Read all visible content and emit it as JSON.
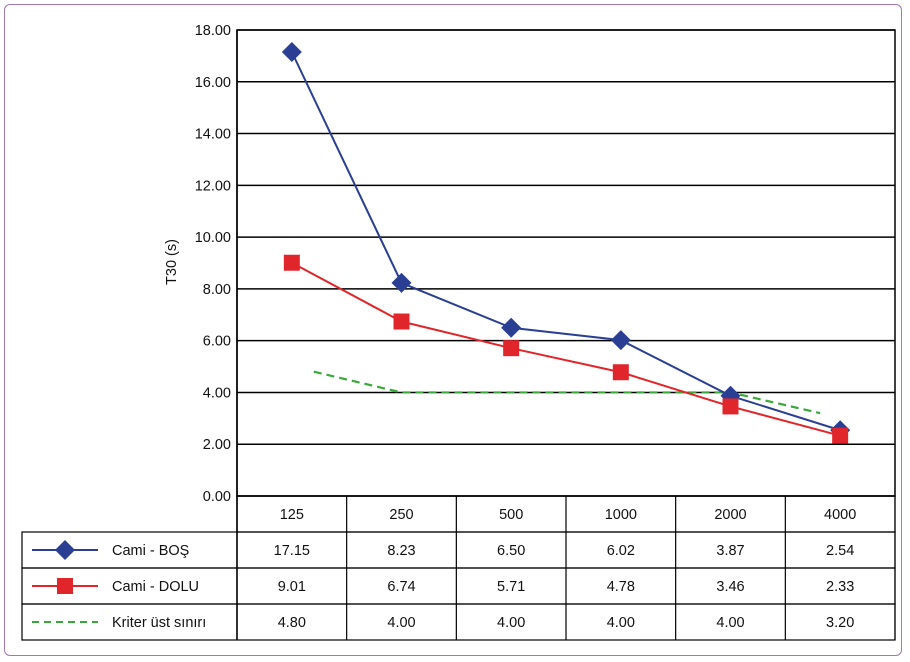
{
  "chart_data": {
    "type": "line",
    "title": "",
    "xlabel": "",
    "ylabel": "T30 (s)",
    "ylim": [
      0,
      18
    ],
    "yticks": [
      "0.00",
      "2.00",
      "4.00",
      "6.00",
      "8.00",
      "10.00",
      "12.00",
      "14.00",
      "16.00",
      "18.00"
    ],
    "categories": [
      "125",
      "250",
      "500",
      "1000",
      "2000",
      "4000"
    ],
    "grid": true,
    "legend": "data-table-left",
    "series": [
      {
        "name": "Cami - BOŞ",
        "values": [
          17.15,
          8.23,
          6.5,
          6.02,
          3.87,
          2.54
        ],
        "labels": [
          "17.15",
          "8.23",
          "6.50",
          "6.02",
          "3.87",
          "2.54"
        ],
        "color": "#2a3f94",
        "marker": "diamond",
        "dash": "solid"
      },
      {
        "name": "Cami - DOLU",
        "values": [
          9.01,
          6.74,
          5.71,
          4.78,
          3.46,
          2.33
        ],
        "labels": [
          "9.01",
          "6.74",
          "5.71",
          "4.78",
          "3.46",
          "2.33"
        ],
        "color": "#e0262b",
        "marker": "square",
        "dash": "solid"
      },
      {
        "name": "Kriter üst sınırı",
        "values": [
          4.8,
          4.0,
          4.0,
          4.0,
          4.0,
          3.2
        ],
        "labels": [
          "4.80",
          "4.00",
          "4.00",
          "4.00",
          "4.00",
          "3.20"
        ],
        "color": "#3aa83a",
        "marker": "none",
        "dash": "dashed"
      }
    ]
  }
}
